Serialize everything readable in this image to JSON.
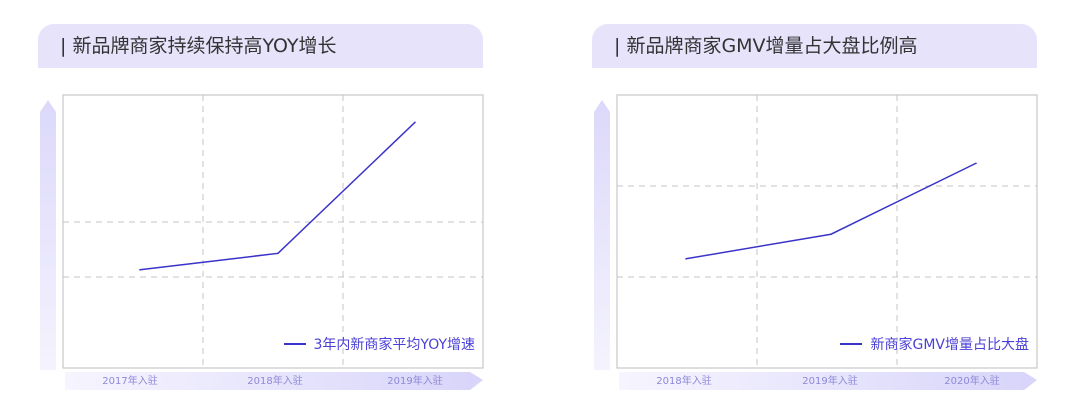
{
  "chart_data": [
    {
      "type": "line",
      "title": "| 新品牌商家持续保持高YOY增长",
      "categories": [
        "2017年入驻",
        "2018年入驻",
        "2019年入驻"
      ],
      "series": [
        {
          "name": "3年内新商家平均YOY增速",
          "values": [
            36,
            42,
            90
          ]
        }
      ],
      "ylim": [
        0,
        100
      ],
      "grid": true,
      "legend": "bottom-right",
      "color": "#3a33c9"
    },
    {
      "type": "line",
      "title": "| 新品牌商家GMV增量占大盘比例高",
      "categories": [
        "2018年入驻",
        "2019年入驻",
        "2020年入驻"
      ],
      "series": [
        {
          "name": "新商家GMV增量占比大盘",
          "values": [
            40,
            49,
            75
          ]
        }
      ],
      "ylim": [
        0,
        100
      ],
      "grid": true,
      "legend": "bottom-right",
      "color": "#3a33c9"
    }
  ]
}
